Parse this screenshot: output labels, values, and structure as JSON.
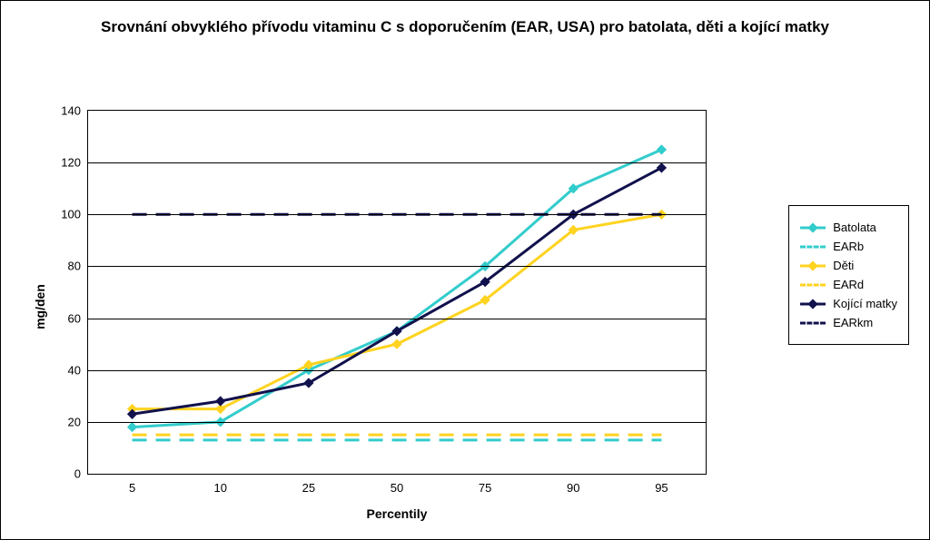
{
  "chart": {
    "type": "line",
    "title": "Srovnání obvyklého přívodu vitaminu C s doporučením (EAR, USA) pro batolata, děti a kojící matky",
    "title_fontsize": 17,
    "x_axis_title": "Percentily",
    "y_axis_title": "mg/den",
    "axis_title_fontsize": 14,
    "tick_fontsize": 13,
    "background_color": "#ffffff",
    "border_color": "#000000",
    "grid_color": "#000000",
    "ylim": [
      0,
      140
    ],
    "ytick_step": 20,
    "yticks": [
      0,
      20,
      40,
      60,
      80,
      100,
      120,
      140
    ],
    "x_categories": [
      "5",
      "10",
      "25",
      "50",
      "75",
      "90",
      "95"
    ],
    "line_width": 3,
    "marker_size": 8,
    "series": [
      {
        "name": "Batolata",
        "color": "#33cccc",
        "dash": "solid",
        "marker": "diamond",
        "values": [
          18,
          20,
          40,
          55,
          80,
          110,
          125
        ]
      },
      {
        "name": "EARb",
        "color": "#33cccc",
        "dash": "dashed",
        "marker": "none",
        "values": [
          13,
          13,
          13,
          13,
          13,
          13,
          13
        ]
      },
      {
        "name": "Děti",
        "color": "#ffd320",
        "dash": "solid",
        "marker": "diamond",
        "values": [
          25,
          25,
          42,
          50,
          67,
          94,
          100
        ]
      },
      {
        "name": "EARd",
        "color": "#ffd320",
        "dash": "dashed",
        "marker": "none",
        "values": [
          15,
          15,
          15,
          15,
          15,
          15,
          15
        ]
      },
      {
        "name": "Kojící matky",
        "color": "#11114d",
        "dash": "solid",
        "marker": "diamond",
        "values": [
          23,
          28,
          35,
          55,
          74,
          100,
          118
        ]
      },
      {
        "name": "EARkm",
        "color": "#11114d",
        "dash": "dashed",
        "marker": "none",
        "values": [
          100,
          100,
          100,
          100,
          100,
          100,
          100
        ]
      }
    ],
    "legend_position": "right"
  }
}
